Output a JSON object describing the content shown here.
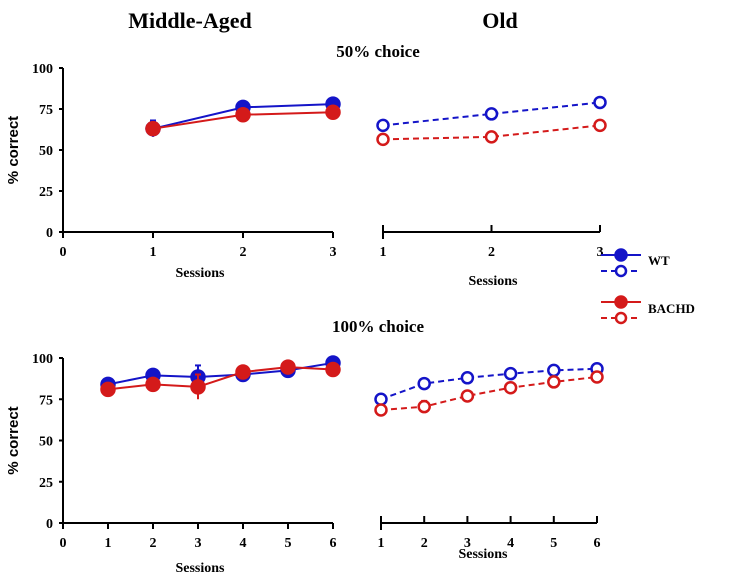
{
  "chart_data": [
    {
      "type": "line",
      "panel": "middle-aged-50",
      "column_title": "Middle-Aged",
      "row_title": "50% choice",
      "xlabel": "Sessions",
      "ylabel": "% correct",
      "xlim": [
        0,
        3
      ],
      "ylim": [
        0,
        100
      ],
      "xticks": [
        "0",
        "1",
        "2",
        "3"
      ],
      "yticks": [
        "0",
        "25",
        "50",
        "75",
        "100"
      ],
      "x": [
        1,
        2,
        3
      ],
      "series": [
        {
          "name": "WT",
          "style": "solid-filled",
          "values": [
            63,
            76,
            78
          ],
          "err": [
            5,
            2,
            2.5
          ]
        },
        {
          "name": "BACHD",
          "style": "solid-filled",
          "values": [
            63,
            71.5,
            73
          ],
          "err": [
            3,
            2,
            2
          ]
        }
      ]
    },
    {
      "type": "line",
      "panel": "old-50",
      "column_title": "Old",
      "xlabel": "Sessions",
      "xlim": [
        1,
        3
      ],
      "ylim": [
        0,
        100
      ],
      "xticks": [
        "1",
        "2",
        "3"
      ],
      "x": [
        1,
        2,
        3
      ],
      "series": [
        {
          "name": "WT",
          "style": "dashed-open",
          "values": [
            65,
            72,
            79
          ],
          "err": [
            2,
            3,
            1.5
          ]
        },
        {
          "name": "BACHD",
          "style": "dashed-open",
          "values": [
            56.5,
            58,
            65
          ],
          "err": [
            1.5,
            1.5,
            1.5
          ]
        }
      ]
    },
    {
      "type": "line",
      "panel": "middle-aged-100",
      "row_title": "100% choice",
      "xlabel": "Sessions",
      "ylabel": "% correct",
      "xlim": [
        0,
        6
      ],
      "ylim": [
        0,
        100
      ],
      "xticks": [
        "0",
        "1",
        "2",
        "3",
        "4",
        "5",
        "6"
      ],
      "yticks": [
        "0",
        "25",
        "50",
        "75",
        "100"
      ],
      "x": [
        1,
        2,
        3,
        4,
        5,
        6
      ],
      "series": [
        {
          "name": "WT",
          "style": "solid-filled",
          "values": [
            84,
            89.5,
            88.5,
            90,
            92.5,
            97
          ],
          "err": [
            1.5,
            1.5,
            7,
            2.5,
            2.5,
            1.5
          ]
        },
        {
          "name": "BACHD",
          "style": "solid-filled",
          "values": [
            81,
            84,
            82.5,
            91.5,
            94.5,
            93
          ],
          "err": [
            2.5,
            2,
            7.5,
            1.5,
            1.5,
            3
          ]
        }
      ]
    },
    {
      "type": "line",
      "panel": "old-100",
      "xlabel": "Sessions",
      "xlim": [
        1,
        6
      ],
      "ylim": [
        0,
        100
      ],
      "xticks": [
        "1",
        "2",
        "3",
        "4",
        "5",
        "6"
      ],
      "x": [
        1,
        2,
        3,
        4,
        5,
        6
      ],
      "series": [
        {
          "name": "WT",
          "style": "dashed-open",
          "values": [
            75,
            84.5,
            88,
            90.5,
            92.5,
            93.5
          ],
          "err": [
            1.5,
            1.5,
            1.5,
            1.5,
            1.5,
            1.5
          ]
        },
        {
          "name": "BACHD",
          "style": "dashed-open",
          "values": [
            68.5,
            70.5,
            77,
            82,
            85.5,
            88.5
          ],
          "err": [
            2,
            3.5,
            2.5,
            1.5,
            1.5,
            1.5
          ]
        }
      ]
    }
  ],
  "titles": {
    "middle_aged": "Middle-Aged",
    "old": "Old",
    "row1": "50% choice",
    "row2": "100% choice"
  },
  "legend": [
    {
      "label": "WT",
      "color": "#1414c8"
    },
    {
      "label": "BACHD",
      "color": "#d41a1a"
    }
  ],
  "colors": {
    "WT": "#1414c8",
    "BACHD": "#d41a1a"
  }
}
